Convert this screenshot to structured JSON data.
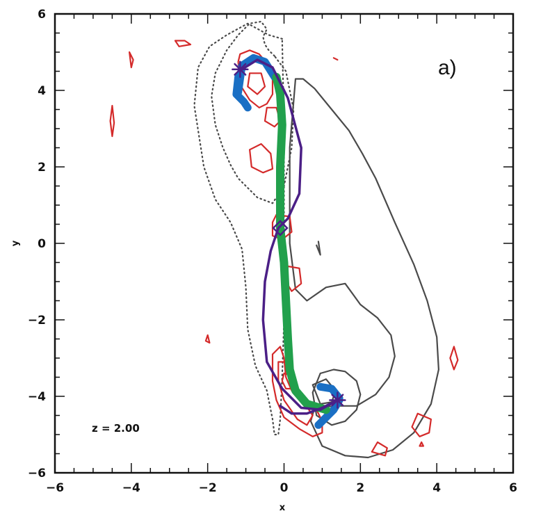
{
  "chart_data": {
    "type": "line",
    "panel_label": "a)",
    "annotation": "z = 2.00",
    "xlabel": "x",
    "ylabel": "y",
    "xlim": [
      -6,
      6
    ],
    "ylim": [
      -6,
      6
    ],
    "xticks": [
      "−6",
      "−4",
      "−2",
      "0",
      "2",
      "4",
      "6"
    ],
    "yticks": [
      "−6",
      "−4",
      "−2",
      "0",
      "2",
      "4",
      "6"
    ],
    "xtick_values": [
      -6,
      -4,
      -2,
      0,
      2,
      4,
      6
    ],
    "ytick_values": [
      -6,
      -4,
      -2,
      0,
      2,
      4,
      6
    ],
    "grid": false,
    "colors": {
      "gray": "#4a4a4a",
      "red": "#d42a2a",
      "purple": "#4b1f86",
      "green": "#22a04c",
      "blue": "#1a6fc4",
      "frame": "#111111"
    },
    "series": [
      {
        "style": "dotted",
        "color": "gray",
        "x": [
          -0.25,
          -0.4,
          -0.5,
          -0.55,
          -0.45,
          -0.6,
          -0.9,
          -1.2,
          -1.5,
          -1.8,
          -1.9,
          -1.8,
          -1.6,
          -1.4,
          -1.2,
          -1.0,
          -0.7,
          -0.3,
          0.0,
          0.2,
          0.25,
          0.05,
          -0.25
        ],
        "y": [
          4.9,
          5.05,
          5.2,
          5.4,
          5.6,
          5.8,
          5.75,
          5.45,
          5.05,
          4.45,
          3.85,
          3.1,
          2.5,
          2.05,
          1.7,
          1.5,
          1.2,
          1.05,
          1.5,
          2.5,
          3.5,
          4.5,
          4.9
        ]
      },
      {
        "style": "dotted",
        "color": "gray",
        "x": [
          -0.05,
          -0.4,
          -0.95,
          -1.5,
          -1.95,
          -2.25,
          -2.35,
          -2.1,
          -1.8,
          -1.4,
          -1.1,
          -1.0,
          -0.95,
          -0.75,
          -0.45,
          -0.3,
          -0.25,
          -0.15,
          -0.1,
          -0.05,
          0.0,
          0.0,
          0.0,
          -0.05
        ],
        "y": [
          5.35,
          5.45,
          5.75,
          5.45,
          5.15,
          4.6,
          3.6,
          2.0,
          1.15,
          0.55,
          -0.15,
          -1.15,
          -2.25,
          -3.2,
          -3.85,
          -4.6,
          -5.0,
          -5.0,
          -4.6,
          -3.5,
          -2.0,
          0.5,
          3.0,
          5.35
        ]
      },
      {
        "style": "solid",
        "color": "gray",
        "x": [
          0.3,
          0.5,
          0.8,
          1.25,
          1.7,
          2.05,
          2.4,
          2.9,
          3.4,
          3.75,
          4.0,
          4.05,
          3.85,
          3.4,
          2.85,
          2.2,
          1.6,
          1.0,
          0.7,
          0.8,
          1.35,
          1.9,
          2.4,
          2.75,
          2.9,
          2.8,
          2.45,
          2.0,
          1.6,
          1.1,
          0.6,
          0.3,
          0.15,
          0.15,
          0.3
        ],
        "y": [
          4.3,
          4.3,
          4.05,
          3.5,
          2.95,
          2.35,
          1.7,
          0.55,
          -0.55,
          -1.5,
          -2.45,
          -3.3,
          -4.2,
          -4.95,
          -5.4,
          -5.6,
          -5.55,
          -5.3,
          -4.65,
          -4.3,
          -4.25,
          -4.25,
          -3.95,
          -3.5,
          -2.95,
          -2.4,
          -1.95,
          -1.6,
          -1.05,
          -1.15,
          -1.5,
          -1.2,
          0.0,
          2.5,
          4.3
        ]
      },
      {
        "style": "solid",
        "color": "gray",
        "x": [
          0.95,
          1.3,
          1.6,
          1.9,
          2.0,
          1.9,
          1.6,
          1.25,
          0.85,
          0.75,
          0.95
        ],
        "y": [
          -3.4,
          -3.3,
          -3.35,
          -3.6,
          -3.95,
          -4.35,
          -4.65,
          -4.75,
          -4.5,
          -3.9,
          -3.4
        ]
      },
      {
        "style": "solid",
        "color": "gray",
        "x": [
          0.75,
          1.1,
          1.35,
          1.25,
          0.95,
          0.75
        ],
        "y": [
          -3.7,
          -3.55,
          -3.85,
          -4.15,
          -4.2,
          -3.7
        ]
      },
      {
        "style": "solid",
        "color": "gray",
        "x": [
          0.85,
          0.95,
          0.9
        ],
        "y": [
          -0.05,
          -0.3,
          0.05
        ]
      },
      {
        "style": "solid",
        "color": "red",
        "x": [
          -1.2,
          -1.15,
          -0.9,
          -0.65,
          -0.4,
          -0.3,
          -0.3,
          -0.45,
          -0.65,
          -0.9,
          -1.15,
          -1.2
        ],
        "y": [
          4.75,
          4.95,
          5.05,
          4.95,
          4.65,
          4.3,
          3.9,
          3.65,
          3.55,
          3.75,
          4.15,
          4.75
        ]
      },
      {
        "style": "solid",
        "color": "red",
        "x": [
          -0.9,
          -0.6,
          -0.5,
          -0.7,
          -0.95,
          -0.9
        ],
        "y": [
          4.45,
          4.45,
          4.1,
          3.9,
          4.1,
          4.45
        ]
      },
      {
        "style": "solid",
        "color": "red",
        "x": [
          -0.45,
          -0.2,
          -0.1,
          -0.25,
          -0.5,
          -0.45
        ],
        "y": [
          3.55,
          3.55,
          3.2,
          3.05,
          3.2,
          3.55
        ]
      },
      {
        "style": "solid",
        "color": "red",
        "x": [
          -0.9,
          -0.6,
          -0.35,
          -0.3,
          -0.55,
          -0.85,
          -0.9
        ],
        "y": [
          2.45,
          2.6,
          2.35,
          1.95,
          1.85,
          2.0,
          2.45
        ]
      },
      {
        "style": "solid",
        "color": "red",
        "x": [
          -0.2,
          0.15,
          0.2,
          -0.05,
          -0.3,
          -0.3,
          -0.2
        ],
        "y": [
          0.75,
          0.7,
          0.3,
          0.1,
          0.2,
          0.55,
          0.75
        ]
      },
      {
        "style": "solid",
        "color": "red",
        "x": [
          0.1,
          0.4,
          0.45,
          0.2,
          0.05,
          0.1
        ],
        "y": [
          -0.6,
          -0.65,
          -1.05,
          -1.25,
          -1.0,
          -0.6
        ]
      },
      {
        "style": "solid",
        "color": "red",
        "x": [
          -0.3,
          -0.1,
          0.0,
          0.05,
          0.2,
          0.5,
          0.85,
          1.0,
          1.0,
          0.75,
          0.4,
          0.0,
          -0.2,
          -0.3,
          -0.3
        ],
        "y": [
          -2.9,
          -2.7,
          -3.0,
          -3.5,
          -3.85,
          -4.15,
          -4.35,
          -4.65,
          -4.95,
          -5.05,
          -4.85,
          -4.55,
          -4.1,
          -3.6,
          -2.9
        ]
      },
      {
        "style": "solid",
        "color": "red",
        "x": [
          -0.15,
          0.05,
          0.15,
          0.3,
          0.55,
          0.75,
          0.6,
          0.35,
          0.0,
          -0.15,
          -0.15
        ],
        "y": [
          -3.1,
          -3.1,
          -3.55,
          -3.9,
          -4.2,
          -4.5,
          -4.75,
          -4.6,
          -4.1,
          -3.6,
          -3.1
        ]
      },
      {
        "style": "solid",
        "color": "red",
        "x": [
          0.0,
          0.2,
          0.25,
          0.05,
          -0.05,
          0.0
        ],
        "y": [
          -3.4,
          -3.45,
          -3.8,
          -3.8,
          -3.6,
          -3.4
        ]
      },
      {
        "style": "solid",
        "color": "red",
        "x": [
          3.5,
          3.85,
          3.8,
          3.55,
          3.35,
          3.5
        ],
        "y": [
          -4.45,
          -4.6,
          -4.95,
          -5.05,
          -4.8,
          -4.45
        ]
      },
      {
        "style": "solid",
        "color": "red",
        "x": [
          2.45,
          2.7,
          2.65,
          2.3,
          2.45
        ],
        "y": [
          -5.2,
          -5.35,
          -5.55,
          -5.45,
          -5.2
        ]
      },
      {
        "style": "solid",
        "color": "red",
        "x": [
          -4.5,
          -4.45,
          -4.5,
          -4.55,
          -4.5
        ],
        "y": [
          3.6,
          3.15,
          2.8,
          3.2,
          3.6
        ]
      },
      {
        "style": "solid",
        "color": "red",
        "x": [
          -4.05,
          -3.95,
          -4.0,
          -4.05
        ],
        "y": [
          5.0,
          4.8,
          4.6,
          5.0
        ]
      },
      {
        "style": "solid",
        "color": "red",
        "x": [
          -2.85,
          -2.6,
          -2.45,
          -2.75,
          -2.85
        ],
        "y": [
          5.3,
          5.3,
          5.2,
          5.15,
          5.3
        ]
      },
      {
        "style": "solid",
        "color": "red",
        "x": [
          4.45,
          4.55,
          4.45,
          4.35,
          4.45
        ],
        "y": [
          -2.7,
          -3.05,
          -3.3,
          -3.0,
          -2.7
        ]
      },
      {
        "style": "solid",
        "color": "red",
        "x": [
          -2.0,
          -1.95,
          -2.05,
          -2.0
        ],
        "y": [
          -2.4,
          -2.6,
          -2.55,
          -2.4
        ]
      },
      {
        "style": "solid",
        "color": "red",
        "x": [
          3.6,
          3.65,
          3.55,
          3.6
        ],
        "y": [
          -5.2,
          -5.3,
          -5.3,
          -5.2
        ]
      },
      {
        "style": "solid",
        "color": "red",
        "x": [
          1.3,
          1.4,
          1.3
        ],
        "y": [
          4.85,
          4.8,
          4.85
        ]
      },
      {
        "style": "thick",
        "color": "blue",
        "x": [
          -1.2,
          -1.1,
          -0.8,
          -0.5,
          -0.25
        ],
        "y": [
          3.95,
          4.65,
          4.85,
          4.75,
          4.35
        ]
      },
      {
        "style": "thick",
        "color": "blue",
        "x": [
          -1.2,
          -1.25,
          -1.05,
          -0.95
        ],
        "y": [
          4.35,
          3.9,
          3.7,
          3.55
        ]
      },
      {
        "style": "thick",
        "color": "blue",
        "x": [
          0.95,
          1.25,
          1.45
        ],
        "y": [
          -3.75,
          -3.8,
          -4.05
        ]
      },
      {
        "style": "thick",
        "color": "blue",
        "x": [
          1.45,
          1.3,
          1.1,
          0.9
        ],
        "y": [
          -4.1,
          -4.35,
          -4.55,
          -4.75
        ]
      },
      {
        "style": "thick",
        "color": "green",
        "x": [
          -0.2,
          -0.1,
          -0.05,
          -0.1,
          -0.1,
          0.0,
          0.05,
          0.1,
          0.15,
          0.3,
          0.6,
          1.1
        ],
        "y": [
          4.35,
          3.9,
          3.1,
          2.0,
          0.4,
          -0.5,
          -1.5,
          -2.5,
          -3.3,
          -3.85,
          -4.2,
          -4.35
        ]
      },
      {
        "style": "solid",
        "color": "purple",
        "x": [
          -1.1,
          -0.7,
          -0.3,
          0.1,
          0.45,
          0.4,
          0.1,
          -0.15,
          -0.35,
          -0.5,
          -0.55,
          -0.45,
          -0.05,
          0.45,
          0.95,
          1.4
        ],
        "y": [
          4.55,
          4.8,
          4.6,
          3.8,
          2.5,
          1.3,
          0.65,
          0.4,
          -0.2,
          -1.0,
          -2.0,
          -3.1,
          -3.8,
          -4.3,
          -4.35,
          -4.1
        ]
      },
      {
        "style": "solid",
        "color": "purple",
        "x": [
          -0.1,
          0.2,
          0.6,
          1.0,
          1.4
        ],
        "y": [
          -4.25,
          -4.45,
          -4.45,
          -4.3,
          -4.1
        ]
      }
    ],
    "markers": [
      {
        "shape": "asterisk",
        "color": "purple",
        "x": -1.15,
        "y": 4.55
      },
      {
        "shape": "asterisk",
        "color": "purple",
        "x": 1.4,
        "y": -4.1
      },
      {
        "shape": "diamond",
        "color": "purple",
        "x": -0.1,
        "y": 0.4
      }
    ]
  }
}
